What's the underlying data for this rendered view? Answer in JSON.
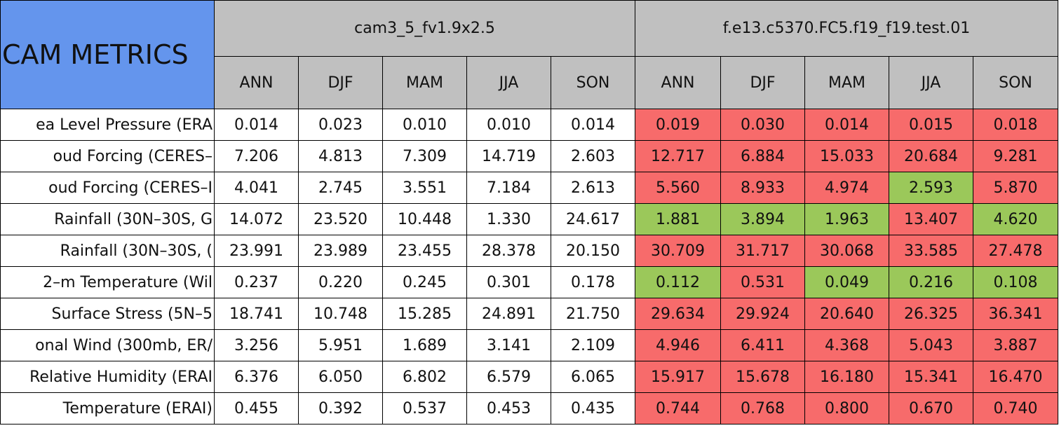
{
  "header": {
    "title": "CAM METRICS",
    "groups": [
      {
        "name": "cam3_5_fv1.9x2.5",
        "seasons": [
          "ANN",
          "DJF",
          "MAM",
          "JJA",
          "SON"
        ]
      },
      {
        "name": "f.e13.c5370.FC5.f19_f19.test.01",
        "seasons": [
          "ANN",
          "DJF",
          "MAM",
          "JJA",
          "SON"
        ]
      }
    ]
  },
  "table": {
    "rows": [
      {
        "label": "ea Level Pressure (ERA",
        "values": [
          "0.014",
          "0.023",
          "0.010",
          "0.010",
          "0.014",
          "0.019",
          "0.030",
          "0.014",
          "0.015",
          "0.018"
        ],
        "colors": [
          "#ffffff",
          "#ffffff",
          "#ffffff",
          "#ffffff",
          "#ffffff",
          "#f76b6b",
          "#f76b6b",
          "#f76b6b",
          "#f76b6b",
          "#f76b6b"
        ]
      },
      {
        "label": "oud Forcing (CERES–",
        "values": [
          "7.206",
          "4.813",
          "7.309",
          "14.719",
          "2.603",
          "12.717",
          "6.884",
          "15.033",
          "20.684",
          "9.281"
        ],
        "colors": [
          "#ffffff",
          "#ffffff",
          "#ffffff",
          "#ffffff",
          "#ffffff",
          "#f76b6b",
          "#f76b6b",
          "#f76b6b",
          "#f76b6b",
          "#f76b6b"
        ]
      },
      {
        "label": "oud Forcing (CERES–I",
        "values": [
          "4.041",
          "2.745",
          "3.551",
          "7.184",
          "2.613",
          "5.560",
          "8.933",
          "4.974",
          "2.593",
          "5.870"
        ],
        "colors": [
          "#ffffff",
          "#ffffff",
          "#ffffff",
          "#ffffff",
          "#ffffff",
          "#f76b6b",
          "#f76b6b",
          "#f76b6b",
          "#9bc85a",
          "#f76b6b"
        ]
      },
      {
        "label": "Rainfall (30N–30S, G",
        "values": [
          "14.072",
          "23.520",
          "10.448",
          "1.330",
          "24.617",
          "1.881",
          "3.894",
          "1.963",
          "13.407",
          "4.620"
        ],
        "colors": [
          "#ffffff",
          "#ffffff",
          "#ffffff",
          "#ffffff",
          "#ffffff",
          "#9bc85a",
          "#9bc85a",
          "#9bc85a",
          "#f76b6b",
          "#9bc85a"
        ]
      },
      {
        "label": "Rainfall (30N–30S, (",
        "values": [
          "23.991",
          "23.989",
          "23.455",
          "28.378",
          "20.150",
          "30.709",
          "31.717",
          "30.068",
          "33.585",
          "27.478"
        ],
        "colors": [
          "#ffffff",
          "#ffffff",
          "#ffffff",
          "#ffffff",
          "#ffffff",
          "#f76b6b",
          "#f76b6b",
          "#f76b6b",
          "#f76b6b",
          "#f76b6b"
        ]
      },
      {
        "label": "2–m Temperature (Wil",
        "values": [
          "0.237",
          "0.220",
          "0.245",
          "0.301",
          "0.178",
          "0.112",
          "0.531",
          "0.049",
          "0.216",
          "0.108"
        ],
        "colors": [
          "#ffffff",
          "#ffffff",
          "#ffffff",
          "#ffffff",
          "#ffffff",
          "#9bc85a",
          "#f76b6b",
          "#9bc85a",
          "#9bc85a",
          "#9bc85a"
        ]
      },
      {
        "label": "Surface Stress (5N–5",
        "values": [
          "18.741",
          "10.748",
          "15.285",
          "24.891",
          "21.750",
          "29.634",
          "29.924",
          "20.640",
          "26.325",
          "36.341"
        ],
        "colors": [
          "#ffffff",
          "#ffffff",
          "#ffffff",
          "#ffffff",
          "#ffffff",
          "#f76b6b",
          "#f76b6b",
          "#f76b6b",
          "#f76b6b",
          "#f76b6b"
        ]
      },
      {
        "label": "onal Wind (300mb, ER/",
        "values": [
          "3.256",
          "5.951",
          "1.689",
          "3.141",
          "2.109",
          "4.946",
          "6.411",
          "4.368",
          "5.043",
          "3.887"
        ],
        "colors": [
          "#ffffff",
          "#ffffff",
          "#ffffff",
          "#ffffff",
          "#ffffff",
          "#f76b6b",
          "#f76b6b",
          "#f76b6b",
          "#f76b6b",
          "#f76b6b"
        ]
      },
      {
        "label": "Relative Humidity (ERAI",
        "values": [
          "6.376",
          "6.050",
          "6.802",
          "6.579",
          "6.065",
          "15.917",
          "15.678",
          "16.180",
          "15.341",
          "16.470"
        ],
        "colors": [
          "#ffffff",
          "#ffffff",
          "#ffffff",
          "#ffffff",
          "#ffffff",
          "#f76b6b",
          "#f76b6b",
          "#f76b6b",
          "#f76b6b",
          "#f76b6b"
        ]
      },
      {
        "label": "Temperature (ERAI)",
        "values": [
          "0.455",
          "0.392",
          "0.537",
          "0.453",
          "0.435",
          "0.744",
          "0.768",
          "0.800",
          "0.670",
          "0.740"
        ],
        "colors": [
          "#ffffff",
          "#ffffff",
          "#ffffff",
          "#ffffff",
          "#ffffff",
          "#f76b6b",
          "#f76b6b",
          "#f76b6b",
          "#f76b6b",
          "#f76b6b"
        ]
      }
    ]
  }
}
